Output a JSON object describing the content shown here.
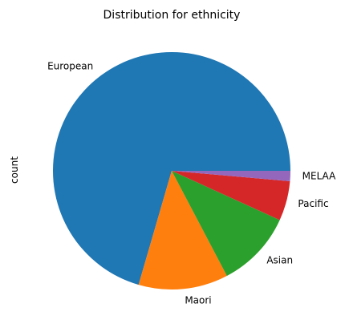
{
  "chart_data": {
    "type": "pie",
    "title": "Distribution for ethnicity",
    "ylabel": "count",
    "slices": [
      {
        "label": "European",
        "value": 70.5,
        "color": "#1f77b4"
      },
      {
        "label": "Maori",
        "value": 12.2,
        "color": "#ff7f0e"
      },
      {
        "label": "Asian",
        "value": 10.5,
        "color": "#2ca02c"
      },
      {
        "label": "Pacific",
        "value": 5.4,
        "color": "#d62728"
      },
      {
        "label": "MELAA",
        "value": 1.4,
        "color": "#9467bd"
      }
    ],
    "start_angle_deg": 0,
    "direction": "counterclockwise"
  }
}
